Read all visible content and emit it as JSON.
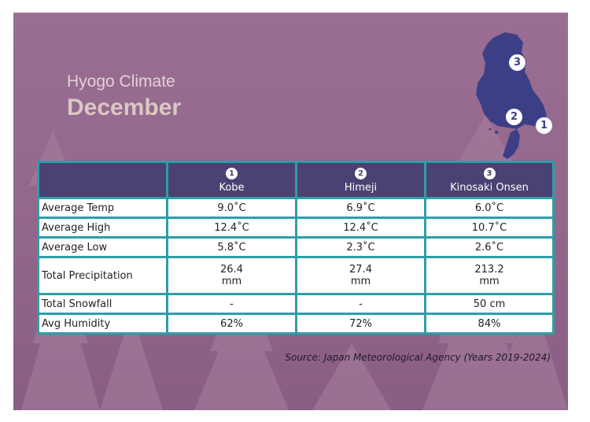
{
  "title": {
    "line1": "Hyogo Climate",
    "line2": "December"
  },
  "map_pins": [
    "3",
    "2",
    "1"
  ],
  "table": {
    "columns": [
      {
        "pin": "1",
        "name": "Kobe"
      },
      {
        "pin": "2",
        "name": "Himeji"
      },
      {
        "pin": "3",
        "name": "Kinosaki Onsen"
      }
    ],
    "rows": [
      {
        "label": "Average Temp",
        "values": [
          "9.0˚C",
          "6.9˚C",
          "6.0˚C"
        ]
      },
      {
        "label": "Average High",
        "values": [
          "12.4˚C",
          "12.4˚C",
          "10.7˚C"
        ]
      },
      {
        "label": "Average Low",
        "values": [
          "5.8˚C",
          "2.3˚C",
          "2.6˚C"
        ]
      },
      {
        "label": "Total Precipitation",
        "values": [
          [
            "26.4",
            "mm"
          ],
          [
            "27.4",
            "mm"
          ],
          [
            "213.2",
            "mm"
          ]
        ]
      },
      {
        "label": "Total Snowfall",
        "values": [
          "-",
          "-",
          "50 cm"
        ]
      },
      {
        "label": "Avg Humidity",
        "values": [
          "62%",
          "72%",
          "84%"
        ]
      }
    ]
  },
  "source": "Source: Japan Meteorological Agency (Years 2019-2024)",
  "colors": {
    "background": "#93668c",
    "header": "#4a4272",
    "border": "#2e9ea5",
    "map": "#3c3f86"
  }
}
